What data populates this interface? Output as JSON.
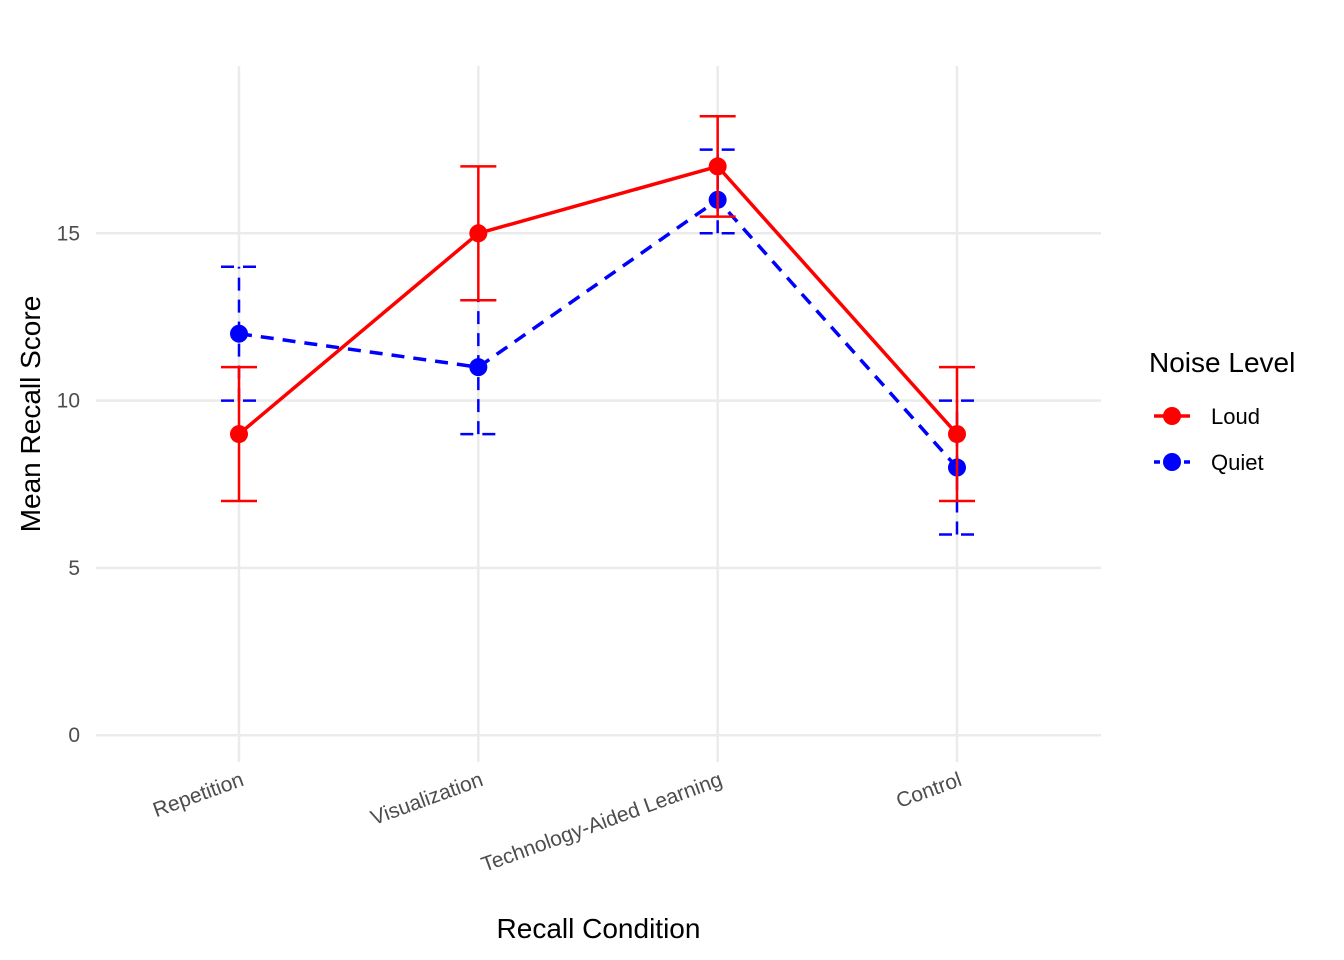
{
  "chart_data": {
    "type": "line",
    "title": "",
    "xlabel": "Recall Condition",
    "ylabel": "Mean Recall Score",
    "categories": [
      "Repetition",
      "Visualization",
      "Technology-Aided Learning",
      "Control"
    ],
    "ylim": [
      -0.8,
      20
    ],
    "yticks": [
      0,
      5,
      10,
      15
    ],
    "grid": true,
    "legend": {
      "title": "Noise Level",
      "position": "right"
    },
    "series": [
      {
        "name": "Loud",
        "color": "#ff0000",
        "linestyle": "solid",
        "values": [
          9,
          15,
          17,
          9
        ],
        "error_low": [
          7,
          13,
          15.5,
          7
        ],
        "error_high": [
          11,
          17,
          18.5,
          11
        ]
      },
      {
        "name": "Quiet",
        "color": "#0000ff",
        "linestyle": "dashed",
        "values": [
          12,
          11,
          16,
          8
        ],
        "error_low": [
          10,
          9,
          15,
          6
        ],
        "error_high": [
          14,
          13,
          17.5,
          10
        ]
      }
    ]
  }
}
